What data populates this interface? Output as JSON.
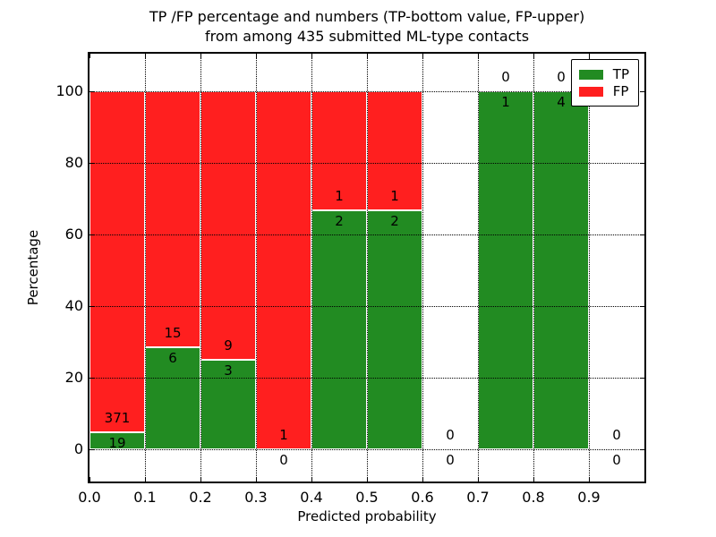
{
  "page": {
    "background": "#ffffff"
  },
  "chart_data": {
    "type": "bar",
    "stacked": true,
    "title": [
      "TP /FP percentage and numbers (TP-bottom value, FP-upper)",
      "from among 435 submitted ML-type contacts"
    ],
    "total_contacts": 435,
    "xlabel": "Predicted probability",
    "ylabel": "Percentage",
    "xlim": [
      0.0,
      1.0
    ],
    "ylim": [
      -9,
      110.5
    ],
    "xtick_values": [
      0.0,
      0.1,
      0.2,
      0.3,
      0.4,
      0.5,
      0.6,
      0.7,
      0.8,
      0.9
    ],
    "xtick_labels": [
      "0.0",
      "0.1",
      "0.2",
      "0.3",
      "0.4",
      "0.5",
      "0.6",
      "0.7",
      "0.8",
      "0.9"
    ],
    "ytick_values": [
      0,
      20,
      40,
      60,
      80,
      100
    ],
    "ytick_labels": [
      "0",
      "20",
      "40",
      "60",
      "80",
      "100"
    ],
    "grid": {
      "style": "dotted",
      "color": "#000000",
      "on": true
    },
    "colors": {
      "tp": "#228b22",
      "fp": "#ff1f1f",
      "bar_edge": "#ffffff"
    },
    "legend": {
      "position": "upper-right",
      "items": [
        {
          "label": "TP",
          "color": "#228b22"
        },
        {
          "label": "FP",
          "color": "#ff1f1f"
        }
      ]
    },
    "label_offsets": {
      "fp_above": 4,
      "tp_below": 3
    },
    "bins": [
      {
        "x_start": 0.0,
        "x_end": 0.1,
        "tp_count": 19,
        "fp_count": 371
      },
      {
        "x_start": 0.1,
        "x_end": 0.2,
        "tp_count": 6,
        "fp_count": 15
      },
      {
        "x_start": 0.2,
        "x_end": 0.3,
        "tp_count": 3,
        "fp_count": 9
      },
      {
        "x_start": 0.3,
        "x_end": 0.4,
        "tp_count": 0,
        "fp_count": 1
      },
      {
        "x_start": 0.4,
        "x_end": 0.5,
        "tp_count": 2,
        "fp_count": 1
      },
      {
        "x_start": 0.5,
        "x_end": 0.6,
        "tp_count": 2,
        "fp_count": 1
      },
      {
        "x_start": 0.6,
        "x_end": 0.7,
        "tp_count": 0,
        "fp_count": 0
      },
      {
        "x_start": 0.7,
        "x_end": 0.8,
        "tp_count": 1,
        "fp_count": 0
      },
      {
        "x_start": 0.8,
        "x_end": 0.9,
        "tp_count": 4,
        "fp_count": 0
      },
      {
        "x_start": 0.9,
        "x_end": 1.0,
        "tp_count": 0,
        "fp_count": 0
      }
    ]
  }
}
